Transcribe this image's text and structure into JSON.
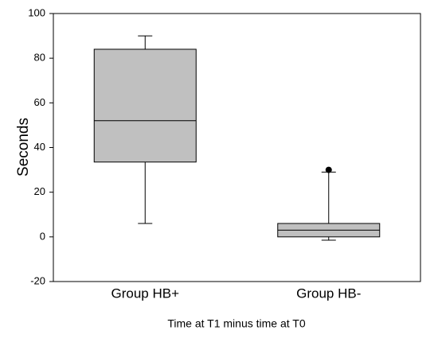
{
  "chart_data": {
    "type": "box",
    "x_label": "Time at T1 minus time at T0",
    "y_label": "Seconds",
    "categories": [
      "Group HB+",
      "Group HB-"
    ],
    "boxes": [
      {
        "min": 6,
        "q1": 33.5,
        "median": 52,
        "q3": 84,
        "max": 90,
        "outliers": []
      },
      {
        "min": -1.5,
        "q1": 0,
        "median": 3,
        "q3": 6,
        "max": 29,
        "outliers": [
          30
        ]
      }
    ],
    "color": "#c0c0c0",
    "ylim": [
      -20,
      100
    ],
    "yticks": [
      -20,
      0,
      20,
      40,
      60,
      80,
      100
    ]
  }
}
